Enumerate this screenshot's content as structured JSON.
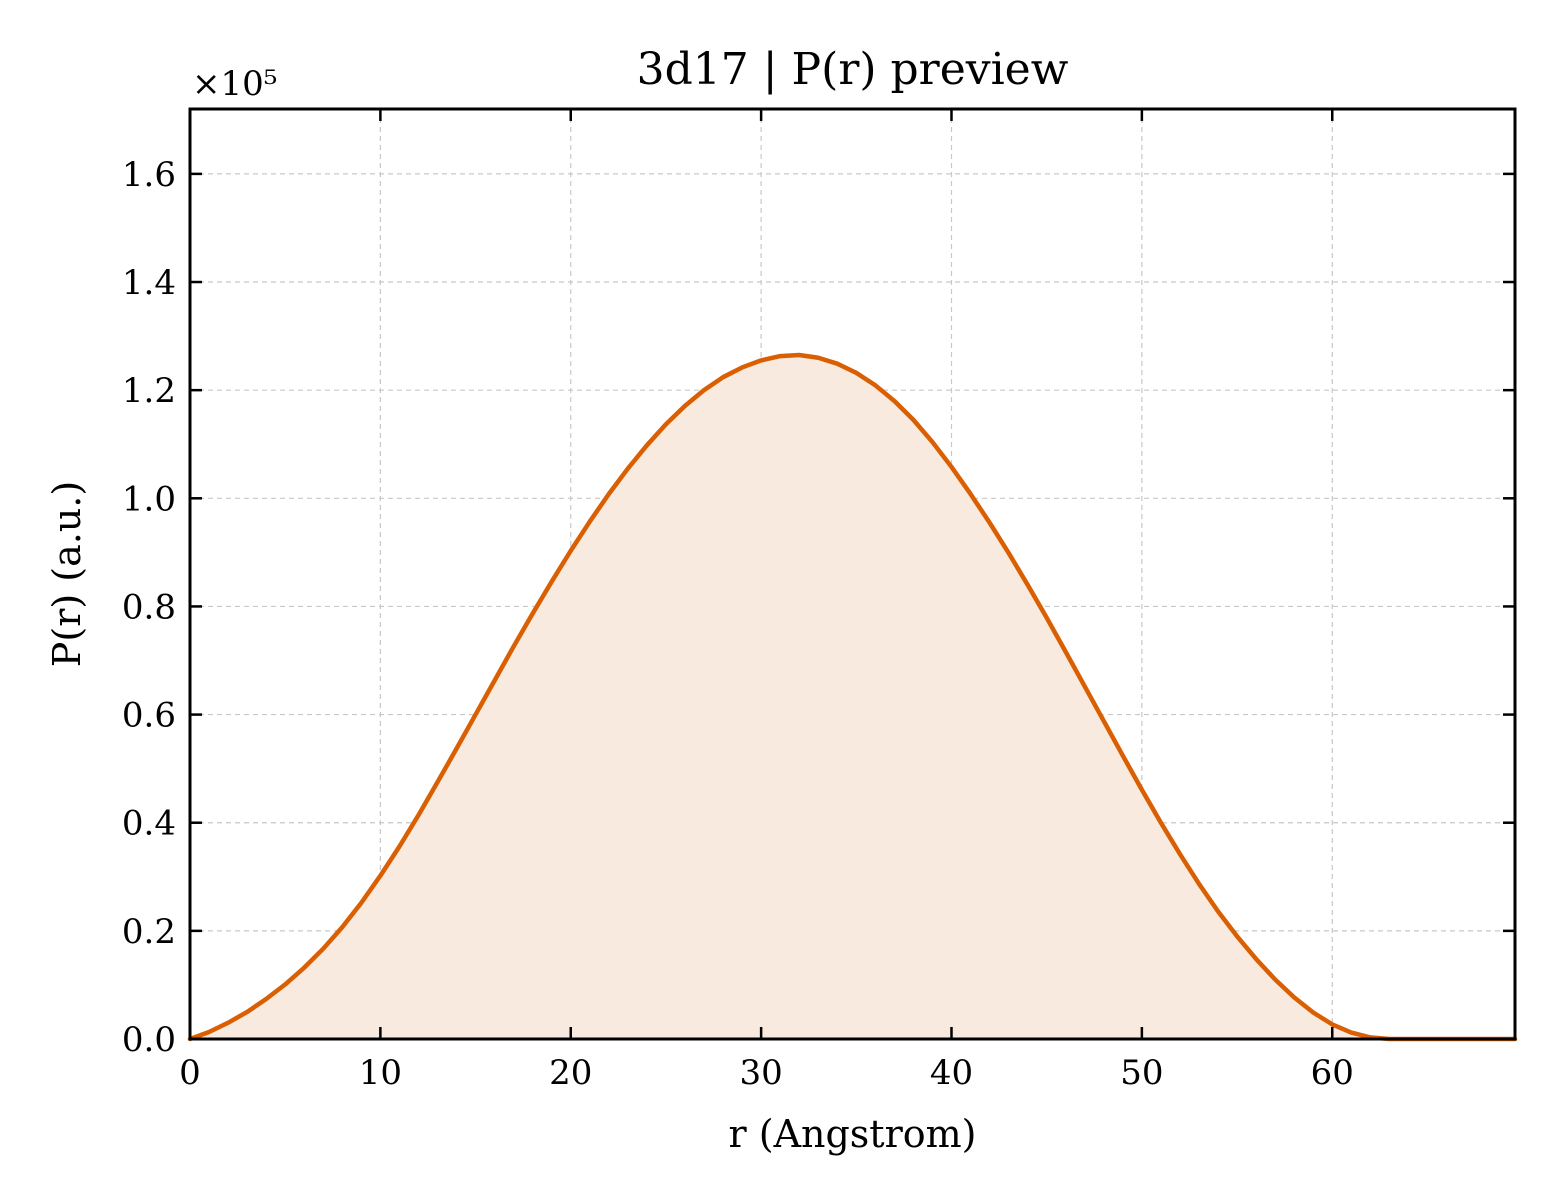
{
  "chart_data": {
    "type": "area",
    "title": "3d17 | P(r) preview",
    "xlabel": "r (Angstrom)",
    "ylabel": "P(r) (a.u.)",
    "y_offset_label": "×10⁵",
    "xlim": [
      0,
      69.6
    ],
    "ylim": [
      0,
      1.72
    ],
    "x_ticks": [
      0,
      10,
      20,
      30,
      40,
      50,
      60
    ],
    "x_tick_labels": [
      "0",
      "10",
      "20",
      "30",
      "40",
      "50",
      "60"
    ],
    "y_ticks": [
      0,
      0.2,
      0.4,
      0.6,
      0.8,
      1.0,
      1.2,
      1.4,
      1.6
    ],
    "y_tick_labels": [
      "0.0",
      "0.2",
      "0.4",
      "0.6",
      "0.8",
      "1.0",
      "1.2",
      "1.4",
      "1.6"
    ],
    "grid": true,
    "legend": "none",
    "series": [
      {
        "color": "#d95f02",
        "fill_color": "#f8eadf",
        "x": [
          0,
          1,
          2,
          3,
          4,
          5,
          6,
          7,
          8,
          9,
          10,
          11,
          12,
          13,
          14,
          15,
          16,
          17,
          18,
          19,
          20,
          21,
          22,
          23,
          24,
          25,
          26,
          27,
          28,
          29,
          30,
          31,
          32,
          33,
          34,
          35,
          36,
          37,
          38,
          39,
          40,
          41,
          42,
          43,
          44,
          45,
          46,
          47,
          48,
          49,
          50,
          51,
          52,
          53,
          54,
          55,
          56,
          57,
          58,
          59,
          60,
          61,
          62,
          63,
          64,
          65,
          66,
          67,
          68,
          69,
          69.6
        ],
        "y": [
          0.0,
          0.013,
          0.03,
          0.05,
          0.074,
          0.101,
          0.132,
          0.167,
          0.207,
          0.252,
          0.302,
          0.356,
          0.414,
          0.475,
          0.537,
          0.6,
          0.663,
          0.726,
          0.787,
          0.846,
          0.903,
          0.957,
          1.008,
          1.055,
          1.098,
          1.137,
          1.171,
          1.2,
          1.224,
          1.242,
          1.255,
          1.263,
          1.265,
          1.26,
          1.249,
          1.232,
          1.209,
          1.18,
          1.145,
          1.104,
          1.058,
          1.008,
          0.955,
          0.899,
          0.84,
          0.779,
          0.716,
          0.652,
          0.588,
          0.524,
          0.461,
          0.4,
          0.342,
          0.287,
          0.236,
          0.19,
          0.148,
          0.11,
          0.077,
          0.049,
          0.027,
          0.012,
          0.003,
          0.0,
          0.0,
          0.0,
          0.0,
          0.0,
          0.0,
          0.0,
          0.0
        ]
      }
    ]
  }
}
